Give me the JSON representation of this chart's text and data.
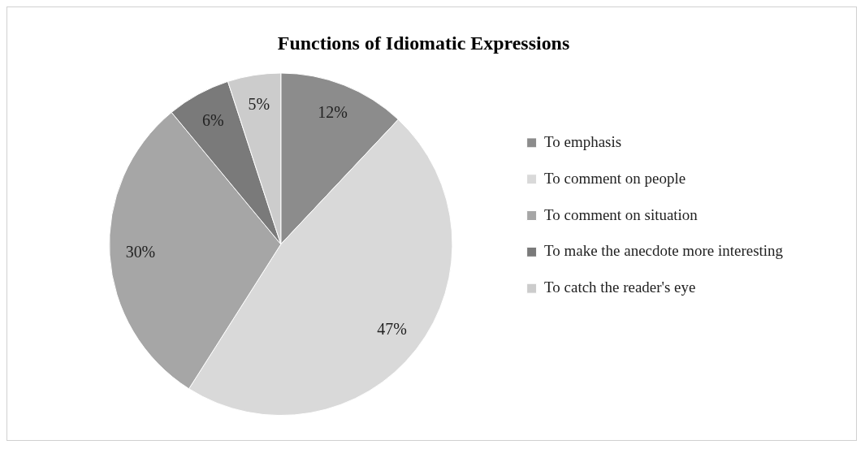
{
  "chart_data": {
    "type": "pie",
    "title": "Functions of Idiomatic Expressions",
    "categories": [
      "To emphasis",
      "To comment on people",
      "To comment on situation",
      "To make the anecdote more interesting",
      "To catch the reader's eye"
    ],
    "values": [
      12,
      47,
      30,
      6,
      5
    ],
    "colors": [
      "#8c8c8c",
      "#d9d9d9",
      "#a6a6a6",
      "#7a7a7a",
      "#cccccc"
    ],
    "value_labels": [
      "12%",
      "47%",
      "30%",
      "6%",
      "5%"
    ],
    "legend": "right"
  }
}
